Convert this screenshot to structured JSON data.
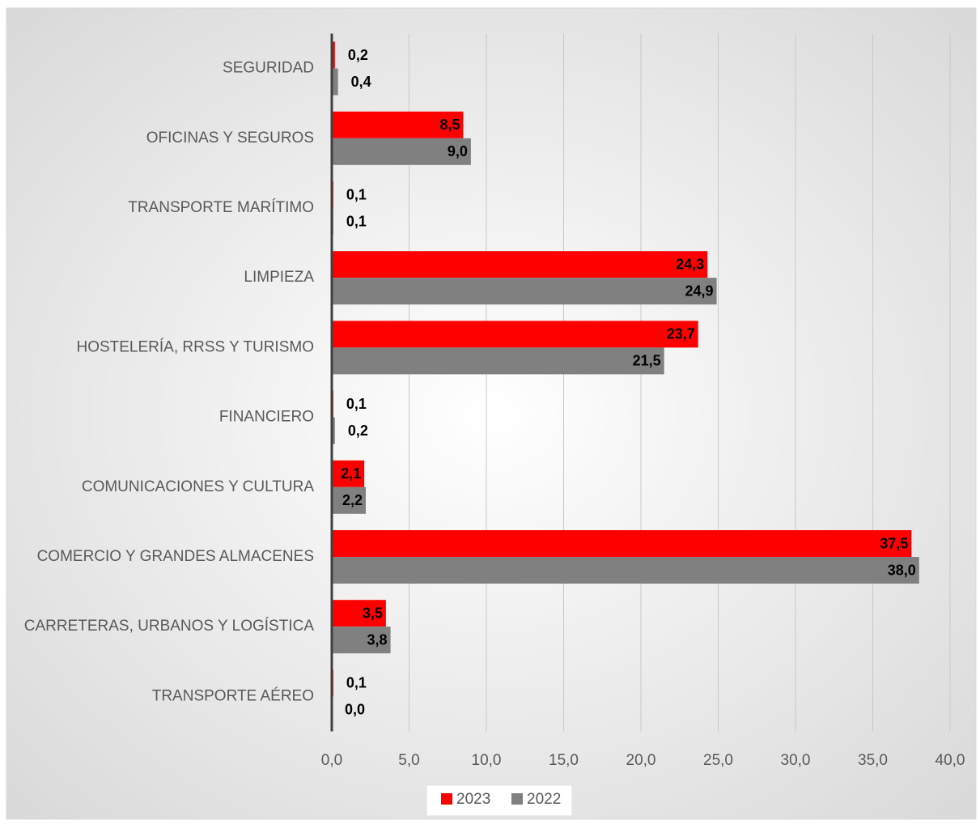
{
  "chart_data": {
    "type": "hbar",
    "categories": [
      "SEGURIDAD",
      "OFICINAS Y SEGUROS",
      "TRANSPORTE MARÍTIMO",
      "LIMPIEZA",
      "HOSTELERÍA, RRSS Y TURISMO",
      "FINANCIERO",
      "COMUNICACIONES Y CULTURA",
      "COMERCIO Y GRANDES ALMACENES",
      "CARRETERAS, URBANOS Y LOGÍSTICA",
      "TRANSPORTE AÉREO"
    ],
    "series": [
      {
        "name": "2023",
        "color": "#ff0000",
        "values": [
          0.2,
          8.5,
          0.1,
          24.3,
          23.7,
          0.1,
          2.1,
          37.5,
          3.5,
          0.1
        ],
        "value_labels": [
          "0,2",
          "8,5",
          "0,1",
          "24,3",
          "23,7",
          "0,1",
          "2,1",
          "37,5",
          "3,5",
          "0,1"
        ]
      },
      {
        "name": "2022",
        "color": "#808080",
        "values": [
          0.4,
          9.0,
          0.1,
          24.9,
          21.5,
          0.2,
          2.2,
          38.0,
          3.8,
          0.0
        ],
        "value_labels": [
          "0,4",
          "9,0",
          "0,1",
          "24,9",
          "21,5",
          "0,2",
          "2,2",
          "38,0",
          "3,8",
          "0,0"
        ]
      }
    ],
    "xlim": [
      0,
      40
    ],
    "xticks": [
      {
        "value": 0,
        "label": "0,0"
      },
      {
        "value": 5,
        "label": "5,0"
      },
      {
        "value": 10,
        "label": "10,0"
      },
      {
        "value": 15,
        "label": "15,0"
      },
      {
        "value": 20,
        "label": "20,0"
      },
      {
        "value": 25,
        "label": "25,0"
      },
      {
        "value": 30,
        "label": "30,0"
      },
      {
        "value": 35,
        "label": "35,0"
      },
      {
        "value": 40,
        "label": "40,0"
      }
    ],
    "grid": true,
    "legend": "bottom"
  }
}
